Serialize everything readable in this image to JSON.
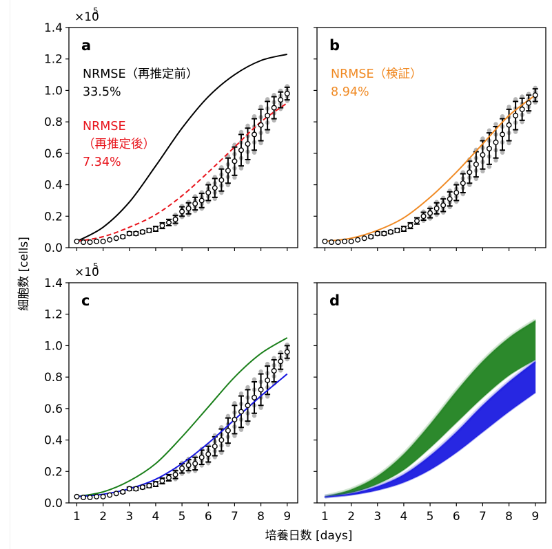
{
  "figure": {
    "ylabel": "細胞数 [cells]",
    "xlabel": "培養日数 [days]",
    "exponent_label": "×10",
    "exponent_power": "5",
    "xticks": [
      "1",
      "2",
      "3",
      "4",
      "5",
      "6",
      "7",
      "8",
      "9"
    ],
    "yticks": [
      "0.0",
      "0.2",
      "0.4",
      "0.6",
      "0.8",
      "1.0",
      "1.2",
      "1.4"
    ]
  },
  "colors": {
    "black": "#000000",
    "red": "#e8141c",
    "orange": "#f08a24",
    "green": "#1a7f1a",
    "blue": "#1515e0",
    "replicate_dots": "#b5b5b5"
  },
  "panels": {
    "a": {
      "letter": "a",
      "annotations": [
        {
          "text": "NRMSE（再推定前）",
          "color": "#000000"
        },
        {
          "text": "33.5%",
          "color": "#000000"
        },
        {
          "text": "NRMSE",
          "color": "#e8141c"
        },
        {
          "text": "（再推定後）",
          "color": "#e8141c"
        },
        {
          "text": "7.34%",
          "color": "#e8141c"
        }
      ]
    },
    "b": {
      "letter": "b",
      "annotations": [
        {
          "text": "NRMSE（検証）",
          "color": "#f08a24"
        },
        {
          "text": "8.94%",
          "color": "#f08a24"
        }
      ]
    },
    "c": {
      "letter": "c",
      "annotations": []
    },
    "d": {
      "letter": "d",
      "annotations": []
    }
  },
  "chart_data": [
    {
      "panel": "a",
      "type": "line",
      "xlim": [
        0.7,
        9.4
      ],
      "ylim": [
        0,
        1.4
      ],
      "y_multiplier": 100000,
      "grid": false,
      "observed": {
        "days": [
          1,
          1.25,
          1.5,
          1.75,
          2,
          2.25,
          2.5,
          2.75,
          3,
          3.25,
          3.5,
          3.75,
          4,
          4.25,
          4.5,
          4.75,
          5,
          5.25,
          5.5,
          5.75,
          6,
          6.25,
          6.5,
          6.75,
          7,
          7.25,
          7.5,
          7.75,
          8,
          8.25,
          8.5,
          8.75,
          9
        ],
        "mean": [
          0.04,
          0.035,
          0.035,
          0.04,
          0.04,
          0.05,
          0.06,
          0.07,
          0.09,
          0.09,
          0.1,
          0.11,
          0.12,
          0.14,
          0.16,
          0.18,
          0.23,
          0.25,
          0.28,
          0.3,
          0.35,
          0.38,
          0.43,
          0.49,
          0.55,
          0.62,
          0.66,
          0.72,
          0.78,
          0.84,
          0.89,
          0.94,
          0.98
        ],
        "error": [
          0.005,
          0.005,
          0.005,
          0.005,
          0.005,
          0.005,
          0.005,
          0.008,
          0.01,
          0.01,
          0.01,
          0.012,
          0.015,
          0.018,
          0.02,
          0.025,
          0.03,
          0.035,
          0.04,
          0.045,
          0.05,
          0.06,
          0.07,
          0.08,
          0.09,
          0.1,
          0.1,
          0.1,
          0.1,
          0.09,
          0.07,
          0.05,
          0.04
        ]
      },
      "curves": [
        {
          "style": "solid",
          "color": "#000000",
          "days": [
            1,
            2,
            3,
            4,
            5,
            6,
            7,
            8,
            9
          ],
          "values": [
            0.04,
            0.13,
            0.29,
            0.52,
            0.76,
            0.96,
            1.1,
            1.19,
            1.23
          ]
        },
        {
          "style": "dashed",
          "color": "#e8141c",
          "days": [
            1,
            2,
            3,
            4,
            5,
            6,
            7,
            8,
            9
          ],
          "values": [
            0.04,
            0.07,
            0.13,
            0.21,
            0.33,
            0.48,
            0.64,
            0.8,
            0.92
          ]
        }
      ]
    },
    {
      "panel": "b",
      "type": "line",
      "xlim": [
        0.7,
        9.4
      ],
      "ylim": [
        0,
        1.4
      ],
      "y_multiplier": 100000,
      "grid": false,
      "observed": {
        "days": [
          1,
          1.25,
          1.5,
          1.75,
          2,
          2.25,
          2.5,
          2.75,
          3,
          3.25,
          3.5,
          3.75,
          4,
          4.25,
          4.5,
          4.75,
          5,
          5.25,
          5.5,
          5.75,
          6,
          6.25,
          6.5,
          6.75,
          7,
          7.25,
          7.5,
          7.75,
          8,
          8.25,
          8.5,
          8.75,
          9
        ],
        "mean": [
          0.04,
          0.035,
          0.035,
          0.04,
          0.04,
          0.05,
          0.06,
          0.07,
          0.09,
          0.09,
          0.1,
          0.11,
          0.12,
          0.14,
          0.17,
          0.2,
          0.22,
          0.25,
          0.27,
          0.31,
          0.35,
          0.41,
          0.48,
          0.53,
          0.59,
          0.63,
          0.67,
          0.72,
          0.78,
          0.84,
          0.88,
          0.92,
          0.97
        ],
        "error": [
          0.005,
          0.005,
          0.005,
          0.005,
          0.005,
          0.005,
          0.005,
          0.008,
          0.01,
          0.01,
          0.01,
          0.012,
          0.015,
          0.018,
          0.02,
          0.025,
          0.03,
          0.035,
          0.04,
          0.045,
          0.05,
          0.06,
          0.07,
          0.08,
          0.09,
          0.1,
          0.1,
          0.1,
          0.1,
          0.09,
          0.07,
          0.05,
          0.04
        ]
      },
      "curves": [
        {
          "style": "solid",
          "color": "#f08a24",
          "days": [
            1,
            2,
            3,
            4,
            5,
            6,
            7,
            8,
            9
          ],
          "values": [
            0.04,
            0.06,
            0.11,
            0.19,
            0.32,
            0.48,
            0.66,
            0.84,
            0.97
          ]
        }
      ]
    },
    {
      "panel": "c",
      "type": "line",
      "xlim": [
        0.7,
        9.4
      ],
      "ylim": [
        0,
        1.4
      ],
      "y_multiplier": 100000,
      "grid": false,
      "observed": {
        "days": [
          1,
          1.25,
          1.5,
          1.75,
          2,
          2.25,
          2.5,
          2.75,
          3,
          3.25,
          3.5,
          3.75,
          4,
          4.25,
          4.5,
          4.75,
          5,
          5.25,
          5.5,
          5.75,
          6,
          6.25,
          6.5,
          6.75,
          7,
          7.25,
          7.5,
          7.75,
          8,
          8.25,
          8.5,
          8.75,
          9
        ],
        "mean": [
          0.04,
          0.035,
          0.035,
          0.04,
          0.04,
          0.05,
          0.06,
          0.07,
          0.09,
          0.09,
          0.1,
          0.11,
          0.12,
          0.14,
          0.16,
          0.18,
          0.22,
          0.24,
          0.25,
          0.29,
          0.31,
          0.36,
          0.4,
          0.46,
          0.53,
          0.58,
          0.62,
          0.67,
          0.72,
          0.78,
          0.84,
          0.9,
          0.96
        ],
        "error": [
          0.005,
          0.005,
          0.005,
          0.005,
          0.005,
          0.005,
          0.005,
          0.008,
          0.01,
          0.01,
          0.01,
          0.012,
          0.015,
          0.018,
          0.02,
          0.025,
          0.03,
          0.035,
          0.04,
          0.045,
          0.05,
          0.06,
          0.07,
          0.08,
          0.09,
          0.1,
          0.1,
          0.1,
          0.1,
          0.09,
          0.07,
          0.05,
          0.04
        ]
      },
      "curves": [
        {
          "style": "solid",
          "color": "#1a7f1a",
          "days": [
            1,
            2,
            3,
            4,
            5,
            6,
            7,
            8,
            9
          ],
          "values": [
            0.04,
            0.07,
            0.14,
            0.25,
            0.42,
            0.61,
            0.8,
            0.95,
            1.05
          ]
        },
        {
          "style": "solid",
          "color": "#1515e0",
          "days": [
            1,
            2,
            3,
            4,
            5,
            6,
            7,
            8,
            9
          ],
          "values": [
            0.04,
            0.055,
            0.09,
            0.15,
            0.25,
            0.38,
            0.53,
            0.68,
            0.82
          ]
        }
      ]
    },
    {
      "panel": "d",
      "type": "area",
      "xlim": [
        0.7,
        9.4
      ],
      "ylim": [
        0,
        1.4
      ],
      "y_multiplier": 100000,
      "grid": false,
      "bands": [
        {
          "color": "#1a7f1a",
          "days": [
            1,
            2,
            3,
            4,
            5,
            6,
            7,
            8,
            9
          ],
          "lower": [
            0.04,
            0.065,
            0.12,
            0.21,
            0.35,
            0.51,
            0.67,
            0.81,
            0.91
          ],
          "upper": [
            0.04,
            0.085,
            0.17,
            0.31,
            0.5,
            0.71,
            0.9,
            1.05,
            1.16
          ]
        },
        {
          "color": "#1515e0",
          "days": [
            1,
            2,
            3,
            4,
            5,
            6,
            7,
            8,
            9
          ],
          "lower": [
            0.035,
            0.05,
            0.08,
            0.13,
            0.21,
            0.32,
            0.45,
            0.58,
            0.7
          ],
          "upper": [
            0.04,
            0.06,
            0.105,
            0.18,
            0.3,
            0.45,
            0.62,
            0.77,
            0.9
          ]
        }
      ]
    }
  ]
}
